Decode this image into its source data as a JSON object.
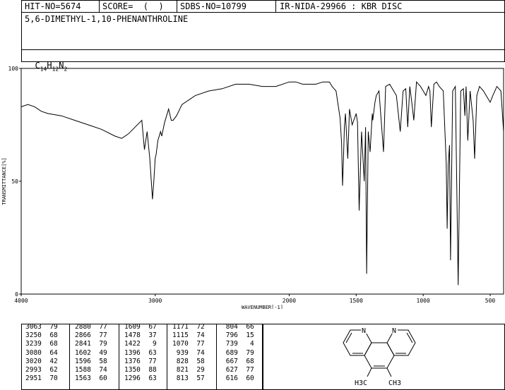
{
  "header": {
    "hit_no": "HIT-NO=5674",
    "score": "SCORE=  (  )",
    "sdbs_no": "SDBS-NO=10799",
    "ir_info": "IR-NIDA-29966 : KBR DISC",
    "compound_name": "5,6-DIMETHYL-1,10-PHENANTHROLINE",
    "formula": {
      "c": "C",
      "c_n": "14",
      "h": "H",
      "h_n": "12",
      "n": "N",
      "n_n": "2"
    }
  },
  "chart_data": {
    "type": "line",
    "xlabel": "WAVENUMBER[-1]",
    "ylabel": "TRANSMITTANCE[%]",
    "xlim": [
      4000,
      400
    ],
    "ylim": [
      0,
      100
    ],
    "x_ticks": [
      4000,
      3000,
      2000,
      1500,
      1000,
      500
    ],
    "y_ticks": [
      0,
      50,
      100
    ],
    "x": [
      4000,
      3950,
      3900,
      3850,
      3800,
      3700,
      3600,
      3500,
      3400,
      3300,
      3250,
      3200,
      3150,
      3100,
      3080,
      3060,
      3040,
      3020,
      3010,
      3000,
      2993,
      2980,
      2960,
      2951,
      2930,
      2900,
      2880,
      2866,
      2841,
      2800,
      2700,
      2600,
      2500,
      2400,
      2300,
      2200,
      2100,
      2000,
      1950,
      1900,
      1850,
      1800,
      1750,
      1700,
      1680,
      1650,
      1620,
      1609,
      1602,
      1596,
      1588,
      1580,
      1563,
      1550,
      1530,
      1500,
      1490,
      1478,
      1460,
      1440,
      1430,
      1422,
      1410,
      1396,
      1380,
      1376,
      1360,
      1350,
      1330,
      1296,
      1280,
      1250,
      1200,
      1171,
      1150,
      1130,
      1115,
      1100,
      1085,
      1070,
      1050,
      1020,
      1000,
      980,
      960,
      950,
      939,
      920,
      900,
      880,
      850,
      828,
      821,
      813,
      804,
      796,
      780,
      760,
      739,
      720,
      700,
      689,
      680,
      667,
      650,
      627,
      616,
      600,
      580,
      550,
      520,
      500,
      480,
      450,
      420,
      400
    ],
    "y": [
      83,
      84,
      83,
      81,
      80,
      79,
      77,
      75,
      73,
      70,
      69,
      71,
      74,
      77,
      64,
      72,
      60,
      42,
      50,
      60,
      62,
      68,
      72,
      70,
      76,
      82,
      77,
      77,
      79,
      84,
      88,
      90,
      91,
      93,
      93,
      92,
      92,
      94,
      94,
      93,
      93,
      93,
      94,
      94,
      92,
      90,
      78,
      67,
      48,
      58,
      74,
      80,
      60,
      82,
      75,
      80,
      76,
      37,
      72,
      50,
      74,
      9,
      72,
      63,
      80,
      77,
      85,
      88,
      90,
      63,
      92,
      93,
      88,
      72,
      90,
      91,
      74,
      92,
      85,
      77,
      94,
      92,
      90,
      88,
      92,
      90,
      74,
      93,
      94,
      92,
      90,
      58,
      29,
      57,
      66,
      15,
      90,
      92,
      4,
      90,
      91,
      79,
      92,
      68,
      90,
      77,
      60,
      88,
      92,
      90,
      87,
      85,
      88,
      92,
      90,
      72
    ]
  },
  "peak_table": {
    "columns": [
      [
        "3063  79",
        "3250  68",
        "3239  68",
        "3080  64",
        "3020  42",
        "2993  62",
        "2951  70"
      ],
      [
        "2880  77",
        "2866  77",
        "2841  79",
        "1602  49",
        "1596  58",
        "1588  74",
        "1563  60"
      ],
      [
        "1609  67",
        "1478  37",
        "1422   9",
        "1396  63",
        "1376  77",
        "1350  88",
        "1296  63"
      ],
      [
        "1171  72",
        "1115  74",
        "1070  77",
        " 939  74",
        " 828  58",
        " 821  29",
        " 813  57"
      ],
      [
        " 804  66",
        " 796  15",
        " 739   4",
        " 689  79",
        " 667  68",
        " 627  77",
        " 616  60"
      ]
    ]
  },
  "structure": {
    "n_label": "N",
    "methyl_left": "H3C",
    "methyl_right": "CH3"
  }
}
